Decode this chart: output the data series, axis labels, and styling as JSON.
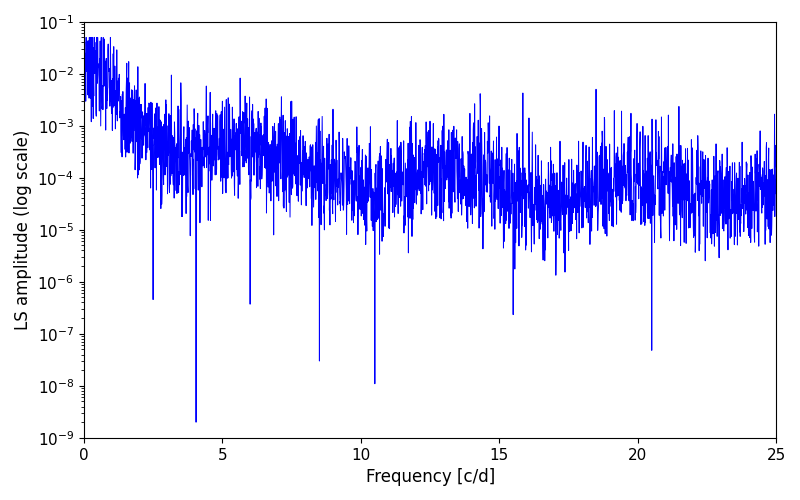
{
  "xlabel": "Frequency [c/d]",
  "ylabel": "LS amplitude (log scale)",
  "xlim": [
    0,
    25
  ],
  "ylim": [
    1e-09,
    0.1
  ],
  "line_color": "#0000ff",
  "line_width": 0.7,
  "bg_color": "#ffffff",
  "freq_min": 0.0,
  "freq_max": 25.0,
  "n_points": 2500,
  "seed": 7
}
